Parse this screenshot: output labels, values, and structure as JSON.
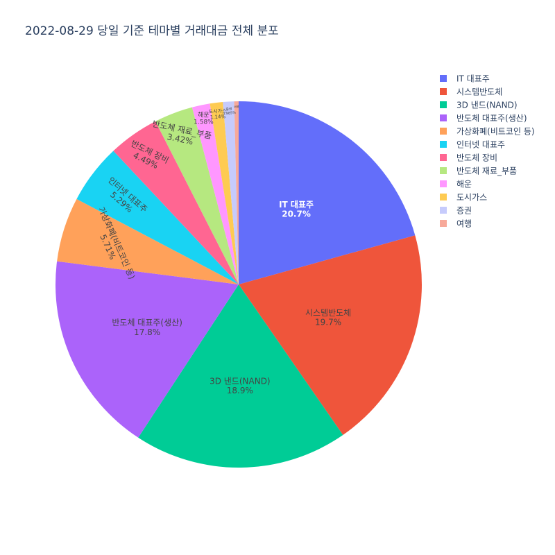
{
  "chart_data": {
    "type": "pie",
    "title": "2022-08-29 당일 기준 테마별 거래대금 전체 분포",
    "direction": "clockwise",
    "start": "12 o'clock",
    "legend_position": "top-right",
    "slices": [
      {
        "label": "IT 대표주",
        "value": 20.7,
        "percent_label": "20.7%",
        "color": "#636efa"
      },
      {
        "label": "시스템반도체",
        "value": 19.7,
        "percent_label": "19.7%",
        "color": "#EF553B"
      },
      {
        "label": "3D 낸드(NAND)",
        "value": 18.9,
        "percent_label": "18.9%",
        "color": "#00cc96"
      },
      {
        "label": "반도체 대표주(생산)",
        "value": 17.8,
        "percent_label": "17.8%",
        "color": "#ab63fa"
      },
      {
        "label": "가상화폐(비트코인 등)",
        "value": 5.71,
        "percent_label": "5.71%",
        "color": "#FFA15A"
      },
      {
        "label": "인터넷 대표주",
        "value": 5.29,
        "percent_label": "5.29%",
        "color": "#19d3f3"
      },
      {
        "label": "반도체 장비",
        "value": 4.49,
        "percent_label": "4.49%",
        "color": "#FF6692"
      },
      {
        "label": "반도체 재료_부품",
        "value": 3.42,
        "percent_label": "3.42%",
        "color": "#B6E880"
      },
      {
        "label": "해운",
        "value": 1.58,
        "percent_label": "1.58%",
        "color": "#FF97FF"
      },
      {
        "label": "도시가스",
        "value": 1.14,
        "percent_label": "1.14%",
        "color": "#FECB52"
      },
      {
        "label": "증권",
        "value": 0.985,
        "percent_label": "0.985%",
        "color": "#c6cbfc"
      },
      {
        "label": "여행",
        "value": 0.39,
        "percent_label": "",
        "color": "#f7a99a"
      }
    ]
  }
}
